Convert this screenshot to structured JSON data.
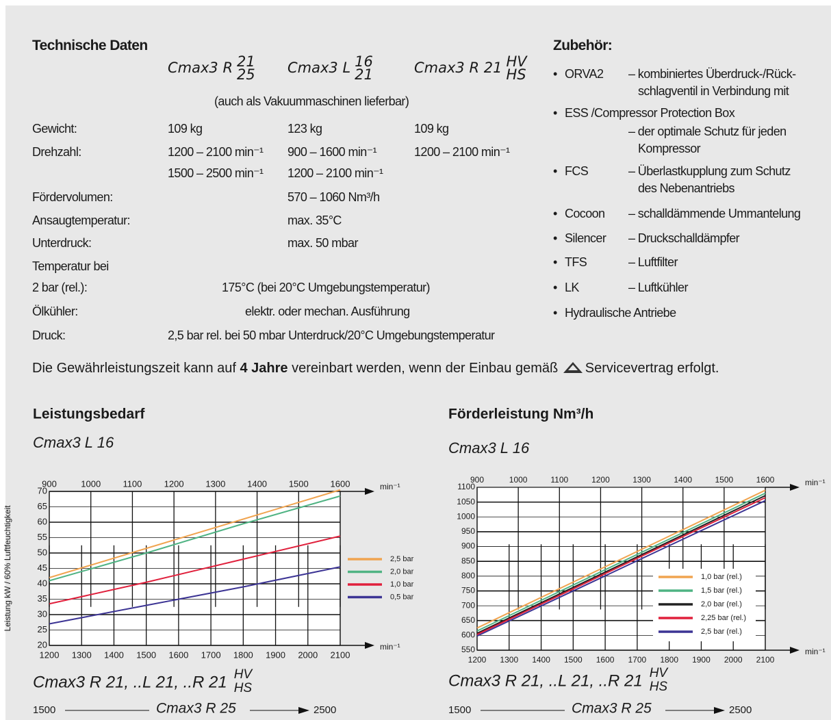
{
  "technical_data": {
    "title": "Technische Daten",
    "models": [
      {
        "name": "Cmax3 R",
        "variants": [
          "21",
          "25"
        ]
      },
      {
        "name": "Cmax3 L",
        "variants": [
          "16",
          "21"
        ]
      },
      {
        "name": "Cmax3 R 21",
        "variants": [
          "HV",
          "HS"
        ]
      }
    ],
    "note": "(auch als Vakuummaschinen lieferbar)",
    "rows": [
      {
        "label": "Gewicht:",
        "cells": [
          "109 kg",
          "123 kg",
          "109 kg"
        ]
      },
      {
        "label": "Drehzahl:",
        "cells": [
          "1200 – 2100 min⁻¹",
          "900 – 1600 min⁻¹",
          "1200 – 2100 min⁻¹"
        ]
      },
      {
        "label": null,
        "cells": [
          "1500 – 2500 min⁻¹",
          "1200 – 2100 min⁻¹",
          null
        ]
      },
      {
        "label": "Fördervolumen:",
        "cells": [
          null,
          "570 – 1060 Nm³/h",
          null
        ]
      },
      {
        "label": "Ansaugtemperatur:",
        "cells": [
          null,
          "max. 35°C",
          null
        ]
      },
      {
        "label": "Unterdruck:",
        "cells": [
          null,
          "max. 50 mbar",
          null
        ]
      },
      {
        "label": "Temperatur bei",
        "cells": [
          null,
          null,
          null
        ]
      },
      {
        "label": "2 bar (rel.):",
        "span": "175°C (bei 20°C Umgebungstemperatur)"
      },
      {
        "label": "Ölkühler:",
        "span": "elektr. oder mechan. Ausführung"
      },
      {
        "label": "Druck:",
        "span": "2,5 bar rel. bei 50 mbar Unterdruck/20°C Umgebungstemperatur"
      }
    ]
  },
  "accessories": {
    "title": "Zubehör:",
    "items": [
      {
        "name": "ORVA2",
        "desc": [
          "– kombiniertes Überdruck-/Rück-",
          "schlagventil in Verbindung mit"
        ]
      },
      {
        "name": "ESS /Compressor Protection Box",
        "desc": [
          "– der optimale Schutz für jeden",
          "Kompressor"
        ]
      },
      {
        "name": "FCS",
        "desc": [
          "– Überlastkupplung zum Schutz",
          "des Nebenantriebs"
        ]
      },
      {
        "name": "Cocoon",
        "desc": [
          "– schalldämmende Ummantelung"
        ]
      },
      {
        "name": "Silencer",
        "desc": [
          "– Druckschalldämpfer"
        ]
      },
      {
        "name": "TFS",
        "desc": [
          "– Luftfilter"
        ]
      },
      {
        "name": "LK",
        "desc": [
          "– Luftkühler"
        ]
      },
      {
        "name": "Hydraulische  Antriebe"
      }
    ]
  },
  "warranty": {
    "before": "Die Gewährleistungszeit kann auf ",
    "bold": "4 Jahre",
    "middle": " vereinbart werden, wenn der Einbau gemäß ",
    "after": "Servicevertrag erfolgt."
  },
  "chart_data": [
    {
      "type": "line",
      "title": "Leistungsbedarf",
      "subtitle": "Cmax3 L 16",
      "ylabel": "Leistung kW / 60% Luftfeuchtigkeit",
      "xunit": "min⁻¹",
      "x": [
        1200,
        1500,
        1800,
        2100
      ],
      "xlim": [
        1200,
        2100
      ],
      "xticks": [
        1200,
        1300,
        1400,
        1500,
        1600,
        1700,
        1800,
        1900,
        2000,
        2100
      ],
      "x2lim": [
        900,
        1600
      ],
      "x2ticks": [
        900,
        1000,
        1100,
        1200,
        1300,
        1400,
        1500,
        1600
      ],
      "ylim": [
        20,
        70
      ],
      "yticks": [
        20,
        25,
        30,
        35,
        40,
        45,
        50,
        55,
        60,
        65,
        70
      ],
      "grid": true,
      "legend": "right",
      "series": [
        {
          "name": "2,5 bar (rel.)",
          "color": "#f0a450",
          "values": [
            42,
            51.5,
            61,
            70.5
          ]
        },
        {
          "name": "2,0 bar (rel.)",
          "color": "#4fb383",
          "values": [
            41,
            50,
            59.5,
            68.5
          ]
        },
        {
          "name": "1,0 bar (rel.)",
          "color": "#e0203c",
          "values": [
            33.5,
            40.5,
            48,
            55.5
          ]
        },
        {
          "name": "0,5 bar (rel.)",
          "color": "#3c3494",
          "values": [
            27,
            33,
            39,
            45.5
          ]
        }
      ],
      "caption": {
        "text": "Cmax3 R 21, ..L 21, ..R 21",
        "variants": [
          "HV",
          "HS"
        ]
      },
      "range": {
        "start": "1500",
        "label": "Cmax3 R 25",
        "end": "2500"
      }
    },
    {
      "type": "line",
      "title": "Förderleistung Nm³/h",
      "subtitle": "Cmax3 L 16",
      "xunit": "min⁻¹",
      "x": [
        1200,
        1500,
        1800,
        2100
      ],
      "xlim": [
        1200,
        2100
      ],
      "xticks": [
        1200,
        1300,
        1400,
        1500,
        1600,
        1700,
        1800,
        1900,
        2000,
        2100
      ],
      "x2lim": [
        900,
        1600
      ],
      "x2ticks": [
        900,
        1000,
        1100,
        1200,
        1300,
        1400,
        1500,
        1600
      ],
      "ylim": [
        550,
        1100
      ],
      "yticks": [
        550,
        600,
        650,
        700,
        750,
        800,
        850,
        900,
        950,
        1000,
        1050,
        1100
      ],
      "grid": true,
      "legend": "lower right",
      "series": [
        {
          "name": "1,0 bar (rel.)",
          "color": "#f0a450",
          "values": [
            625,
            780,
            935,
            1090
          ]
        },
        {
          "name": "1,5 bar (rel.)",
          "color": "#4fb383",
          "values": [
            615,
            770,
            925,
            1080
          ]
        },
        {
          "name": "2,0 bar (rel.)",
          "color": "#222222",
          "values": [
            607,
            762,
            917,
            1072
          ]
        },
        {
          "name": "2,25 bar (rel.)",
          "color": "#e0203c",
          "values": [
            603,
            757,
            912,
            1065
          ]
        },
        {
          "name": "2,5 bar (rel.)",
          "color": "#3c3494",
          "values": [
            598,
            750,
            903,
            1055
          ]
        }
      ],
      "caption": {
        "text": "Cmax3 R 21, ..L 21, ..R 21",
        "variants": [
          "HV",
          "HS"
        ]
      },
      "range": {
        "start": "1500",
        "label": "Cmax3 R 25",
        "end": "2500"
      }
    }
  ]
}
